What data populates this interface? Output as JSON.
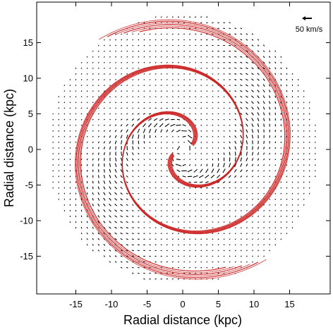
{
  "chart_data": {
    "type": "quiver",
    "title": "",
    "xlabel": "Radial distance (kpc)",
    "ylabel": "Radial distance (kpc)",
    "xlim": [
      -20,
      20
    ],
    "ylim": [
      -20,
      20
    ],
    "xticks": [
      -15,
      -10,
      -5,
      0,
      5,
      10,
      15
    ],
    "yticks": [
      15,
      10,
      5,
      0,
      -5,
      -10,
      -15
    ],
    "grid": false,
    "vector_field": {
      "description": "velocity residual vectors on a grid within radius ~19 kpc",
      "grid_spacing_kpc": 0.8,
      "max_radius_kpc": 19,
      "color": "#000000"
    },
    "scale_bar": {
      "label": "50 km/s",
      "length_kms": 50,
      "position": "top-right"
    },
    "spiral_arms": {
      "count": 2,
      "color": "#cc2222",
      "radius_start_kpc": 1.5,
      "radius_end_kpc": 18.5,
      "strands": 6,
      "winding": "two-armed logarithmic-like spiral"
    }
  }
}
